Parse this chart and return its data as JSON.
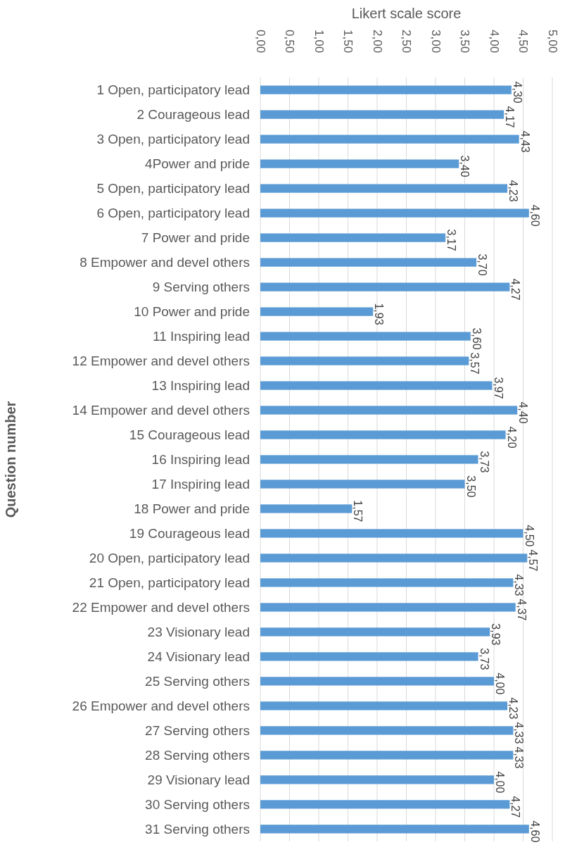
{
  "chart_data": {
    "type": "bar",
    "orientation": "horizontal",
    "xlabel": "Likert scale score",
    "ylabel": "Question number",
    "categories": [
      "1 Open, participatory lead",
      "2 Courageous lead",
      "3 Open, participatory lead",
      "4Power and pride",
      "5 Open, participatory lead",
      "6 Open, participatory lead",
      "7 Power and pride",
      "8 Empower and devel others",
      "9 Serving others",
      "10 Power and pride",
      "11 Inspiring lead",
      "12 Empower and devel others",
      "13 Inspiring lead",
      "14 Empower and devel others",
      "15 Courageous lead",
      "16 Inspiring lead",
      "17 Inspiring lead",
      "18 Power and pride",
      "19 Courageous lead",
      "20 Open, participatory lead",
      "21 Open, participatory lead",
      "22 Empower and devel others",
      "23 Visionary lead",
      "24 Visionary lead",
      "25 Serving others",
      "26 Empower and devel others",
      "27 Serving others",
      "28 Serving others",
      "29 Visionary lead",
      "30 Serving others",
      "31 Serving others"
    ],
    "values": [
      4.3,
      4.17,
      4.43,
      3.4,
      4.23,
      4.6,
      3.17,
      3.7,
      4.27,
      1.93,
      3.6,
      3.57,
      3.97,
      4.4,
      4.2,
      3.73,
      3.5,
      1.57,
      4.5,
      4.57,
      4.33,
      4.37,
      3.93,
      3.73,
      4.0,
      4.23,
      4.33,
      4.33,
      4.0,
      4.27,
      4.6
    ],
    "value_labels": [
      "4,30",
      "4,17",
      "4,43",
      "3,40",
      "4,23",
      "4,60",
      "3,17",
      "3,70",
      "4,27",
      "1,93",
      "3,60",
      "3,57",
      "3,97",
      "4,40",
      "4,20",
      "3,73",
      "3,50",
      "1,57",
      "4,50",
      "4,57",
      "4,33",
      "4,37",
      "3,93",
      "3,73",
      "4,00",
      "4,23",
      "4,33",
      "4,33",
      "4,00",
      "4,27",
      "4,60"
    ],
    "color": "#5b9bd5",
    "xlim": [
      0,
      5
    ],
    "xticks": [
      {
        "value": 0,
        "label": "0,00"
      },
      {
        "value": 0.5,
        "label": "0,50"
      },
      {
        "value": 1,
        "label": "1,00"
      },
      {
        "value": 1.5,
        "label": "1,50"
      },
      {
        "value": 2,
        "label": "2,00"
      },
      {
        "value": 2.5,
        "label": "2,50"
      },
      {
        "value": 3,
        "label": "3,00"
      },
      {
        "value": 3.5,
        "label": "3,50"
      },
      {
        "value": 4,
        "label": "4,00"
      },
      {
        "value": 4.5,
        "label": "4,50"
      },
      {
        "value": 5,
        "label": "5,00"
      }
    ],
    "grid": "x"
  }
}
